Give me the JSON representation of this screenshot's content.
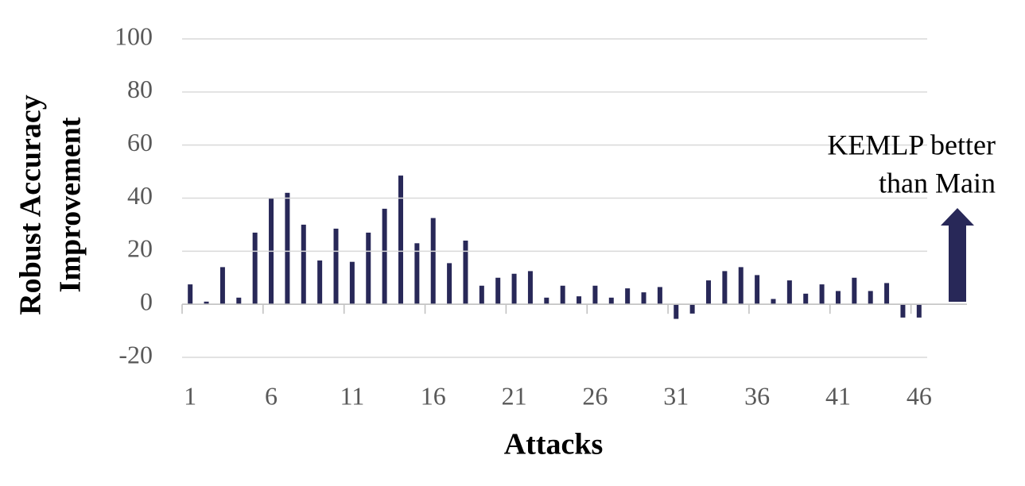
{
  "chart_data": {
    "type": "bar",
    "x_label": "Attacks",
    "y_label": [
      "Robust Accuracy",
      "Improvement"
    ],
    "annotation": [
      "KEMLP better",
      "than Main"
    ],
    "categories": [
      "1",
      null,
      null,
      null,
      null,
      "6",
      null,
      null,
      null,
      null,
      "11",
      null,
      null,
      null,
      null,
      "16",
      null,
      null,
      null,
      null,
      "21",
      null,
      null,
      null,
      null,
      "26",
      null,
      null,
      null,
      null,
      "31",
      null,
      null,
      null,
      null,
      "36",
      null,
      null,
      null,
      null,
      "41",
      null,
      null,
      null,
      null,
      "46"
    ],
    "values": [
      7.5,
      1,
      14,
      2.5,
      27,
      40,
      42,
      30,
      16.5,
      28.5,
      16,
      27,
      36,
      48.5,
      23,
      32.5,
      15.5,
      24,
      7,
      10,
      11.5,
      12.5,
      2.5,
      7,
      3,
      7,
      2.5,
      6,
      4.5,
      6.5,
      -5.5,
      -3.5,
      9,
      12.5,
      14,
      11,
      2,
      9,
      4,
      7.5,
      5,
      10,
      5,
      8,
      -5,
      -5
    ],
    "color": "#282858",
    "ylim": [
      -20,
      100
    ],
    "yticks": [
      -20,
      0,
      20,
      40,
      60,
      80,
      100
    ],
    "grid": true
  }
}
